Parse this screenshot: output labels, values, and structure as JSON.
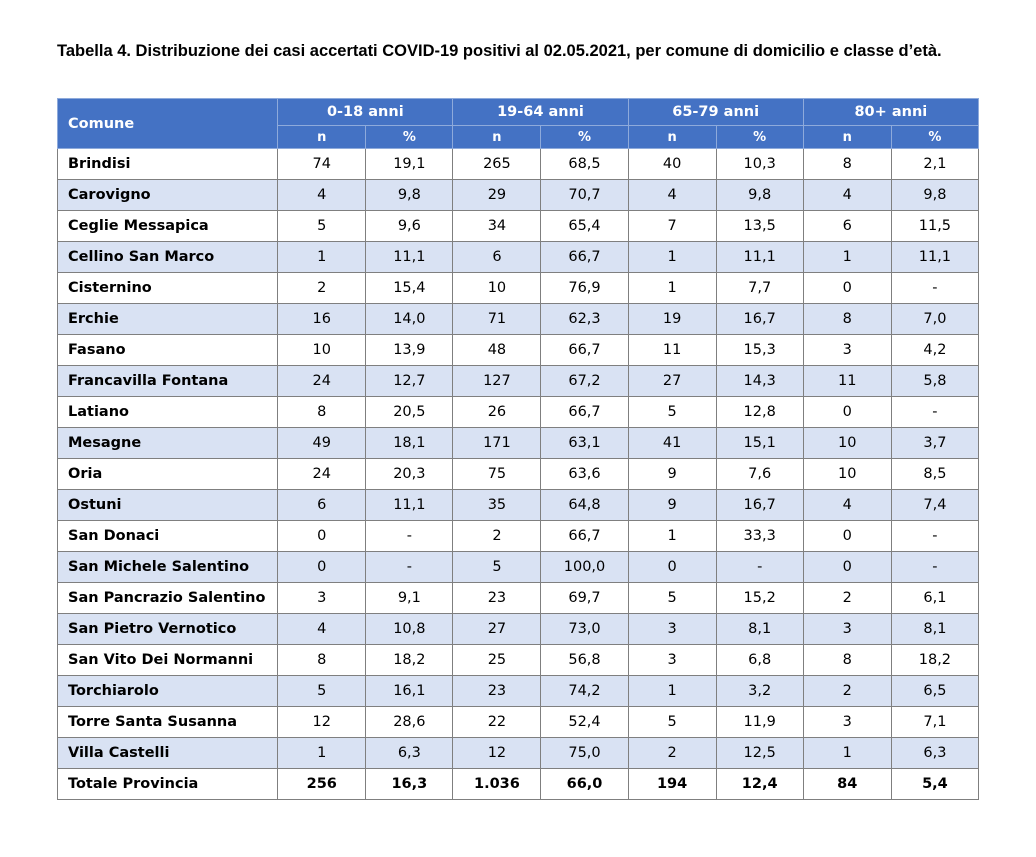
{
  "caption": "Tabella 4. Distribuzione dei casi accertati COVID-19 positivi al 02.05.2021, per comune di domicilio e classe d’età.",
  "header": {
    "comune": "Comune",
    "groups": [
      "0-18 anni",
      "19-64 anni",
      "65-79 anni",
      "80+ anni"
    ],
    "n_label": "n",
    "pct_label": "%"
  },
  "rows": [
    {
      "comune": "Brindisi",
      "v": [
        "74",
        "19,1",
        "265",
        "68,5",
        "40",
        "10,3",
        "8",
        "2,1"
      ]
    },
    {
      "comune": "Carovigno",
      "v": [
        "4",
        "9,8",
        "29",
        "70,7",
        "4",
        "9,8",
        "4",
        "9,8"
      ]
    },
    {
      "comune": "Ceglie Messapica",
      "v": [
        "5",
        "9,6",
        "34",
        "65,4",
        "7",
        "13,5",
        "6",
        "11,5"
      ]
    },
    {
      "comune": "Cellino San Marco",
      "v": [
        "1",
        "11,1",
        "6",
        "66,7",
        "1",
        "11,1",
        "1",
        "11,1"
      ]
    },
    {
      "comune": "Cisternino",
      "v": [
        "2",
        "15,4",
        "10",
        "76,9",
        "1",
        "7,7",
        "0",
        "-"
      ]
    },
    {
      "comune": "Erchie",
      "v": [
        "16",
        "14,0",
        "71",
        "62,3",
        "19",
        "16,7",
        "8",
        "7,0"
      ]
    },
    {
      "comune": "Fasano",
      "v": [
        "10",
        "13,9",
        "48",
        "66,7",
        "11",
        "15,3",
        "3",
        "4,2"
      ]
    },
    {
      "comune": "Francavilla Fontana",
      "v": [
        "24",
        "12,7",
        "127",
        "67,2",
        "27",
        "14,3",
        "11",
        "5,8"
      ]
    },
    {
      "comune": "Latiano",
      "v": [
        "8",
        "20,5",
        "26",
        "66,7",
        "5",
        "12,8",
        "0",
        "-"
      ]
    },
    {
      "comune": "Mesagne",
      "v": [
        "49",
        "18,1",
        "171",
        "63,1",
        "41",
        "15,1",
        "10",
        "3,7"
      ]
    },
    {
      "comune": "Oria",
      "v": [
        "24",
        "20,3",
        "75",
        "63,6",
        "9",
        "7,6",
        "10",
        "8,5"
      ]
    },
    {
      "comune": "Ostuni",
      "v": [
        "6",
        "11,1",
        "35",
        "64,8",
        "9",
        "16,7",
        "4",
        "7,4"
      ]
    },
    {
      "comune": "San Donaci",
      "v": [
        "0",
        "-",
        "2",
        "66,7",
        "1",
        "33,3",
        "0",
        "-"
      ]
    },
    {
      "comune": "San Michele Salentino",
      "v": [
        "0",
        "-",
        "5",
        "100,0",
        "0",
        "-",
        "0",
        "-"
      ]
    },
    {
      "comune": "San Pancrazio Salentino",
      "v": [
        "3",
        "9,1",
        "23",
        "69,7",
        "5",
        "15,2",
        "2",
        "6,1"
      ]
    },
    {
      "comune": "San Pietro Vernotico",
      "v": [
        "4",
        "10,8",
        "27",
        "73,0",
        "3",
        "8,1",
        "3",
        "8,1"
      ]
    },
    {
      "comune": "San Vito Dei Normanni",
      "v": [
        "8",
        "18,2",
        "25",
        "56,8",
        "3",
        "6,8",
        "8",
        "18,2"
      ]
    },
    {
      "comune": "Torchiarolo",
      "v": [
        "5",
        "16,1",
        "23",
        "74,2",
        "1",
        "3,2",
        "2",
        "6,5"
      ]
    },
    {
      "comune": "Torre Santa Susanna",
      "v": [
        "12",
        "28,6",
        "22",
        "52,4",
        "5",
        "11,9",
        "3",
        "7,1"
      ]
    },
    {
      "comune": "Villa Castelli",
      "v": [
        "1",
        "6,3",
        "12",
        "75,0",
        "2",
        "12,5",
        "1",
        "6,3"
      ]
    }
  ],
  "total": {
    "comune": "Totale Provincia",
    "v": [
      "256",
      "16,3",
      "1.036",
      "66,0",
      "194",
      "12,4",
      "84",
      "5,4"
    ]
  }
}
